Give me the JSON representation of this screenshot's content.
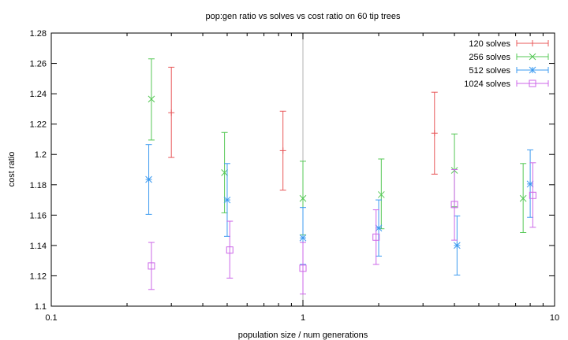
{
  "chart_data": {
    "type": "scatter",
    "title": "pop:gen ratio vs solves vs cost ratio on 60 tip trees",
    "xlabel": "population size / num generations",
    "ylabel": "cost ratio",
    "xscale": "log",
    "xlim": [
      0.1,
      10
    ],
    "ylim": [
      1.1,
      1.28
    ],
    "x_ticks": [
      {
        "value": 0.1,
        "label": "0.1"
      },
      {
        "value": 1,
        "label": "1"
      },
      {
        "value": 10,
        "label": "10"
      }
    ],
    "y_ticks": [
      {
        "value": 1.1,
        "label": "1.1"
      },
      {
        "value": 1.12,
        "label": "1.12"
      },
      {
        "value": 1.14,
        "label": "1.14"
      },
      {
        "value": 1.16,
        "label": "1.16"
      },
      {
        "value": 1.18,
        "label": "1.18"
      },
      {
        "value": 1.2,
        "label": "1.2"
      },
      {
        "value": 1.22,
        "label": "1.22"
      },
      {
        "value": 1.24,
        "label": "1.24"
      },
      {
        "value": 1.26,
        "label": "1.26"
      },
      {
        "value": 1.28,
        "label": "1.28"
      }
    ],
    "grid": "vertical line at x=1",
    "legend_position": "top-right",
    "series": [
      {
        "name": "120 solves",
        "color": "#e8585a",
        "marker": "plus",
        "points": [
          {
            "x": 0.3,
            "y": 1.2275,
            "low": 1.198,
            "high": 1.2575
          },
          {
            "x": 0.833,
            "y": 1.2025,
            "low": 1.1765,
            "high": 1.2285
          },
          {
            "x": 3.333,
            "y": 1.214,
            "low": 1.187,
            "high": 1.241
          }
        ]
      },
      {
        "name": "256 solves",
        "color": "#56c856",
        "marker": "cross",
        "points": [
          {
            "x": 0.25,
            "y": 1.2365,
            "low": 1.2095,
            "high": 1.263
          },
          {
            "x": 0.488,
            "y": 1.188,
            "low": 1.1615,
            "high": 1.2145
          },
          {
            "x": 1.0,
            "y": 1.171,
            "low": 1.147,
            "high": 1.1955
          },
          {
            "x": 2.048,
            "y": 1.1735,
            "low": 1.151,
            "high": 1.197
          },
          {
            "x": 4.0,
            "y": 1.1895,
            "low": 1.1655,
            "high": 1.2135
          },
          {
            "x": 7.5,
            "y": 1.171,
            "low": 1.1485,
            "high": 1.194
          }
        ]
      },
      {
        "name": "512 solves",
        "color": "#3d9bf0",
        "marker": "star",
        "points": [
          {
            "x": 0.244,
            "y": 1.1835,
            "low": 1.1605,
            "high": 1.2065
          },
          {
            "x": 0.5,
            "y": 1.17,
            "low": 1.146,
            "high": 1.194
          },
          {
            "x": 1.0,
            "y": 1.145,
            "low": 1.1275,
            "high": 1.165
          },
          {
            "x": 2.0,
            "y": 1.1515,
            "low": 1.133,
            "high": 1.17
          },
          {
            "x": 4.096,
            "y": 1.14,
            "low": 1.1205,
            "high": 1.1595
          },
          {
            "x": 8.0,
            "y": 1.1805,
            "low": 1.1585,
            "high": 1.203
          }
        ]
      },
      {
        "name": "1024 solves",
        "color": "#cc66e8",
        "marker": "square",
        "points": [
          {
            "x": 0.25,
            "y": 1.1265,
            "low": 1.111,
            "high": 1.142
          },
          {
            "x": 0.512,
            "y": 1.137,
            "low": 1.1185,
            "high": 1.156
          },
          {
            "x": 1.0,
            "y": 1.125,
            "low": 1.108,
            "high": 1.142
          },
          {
            "x": 1.953,
            "y": 1.1455,
            "low": 1.1275,
            "high": 1.1635
          },
          {
            "x": 4.0,
            "y": 1.167,
            "low": 1.1435,
            "high": 1.19
          },
          {
            "x": 8.192,
            "y": 1.173,
            "low": 1.152,
            "high": 1.1945
          }
        ]
      }
    ]
  }
}
